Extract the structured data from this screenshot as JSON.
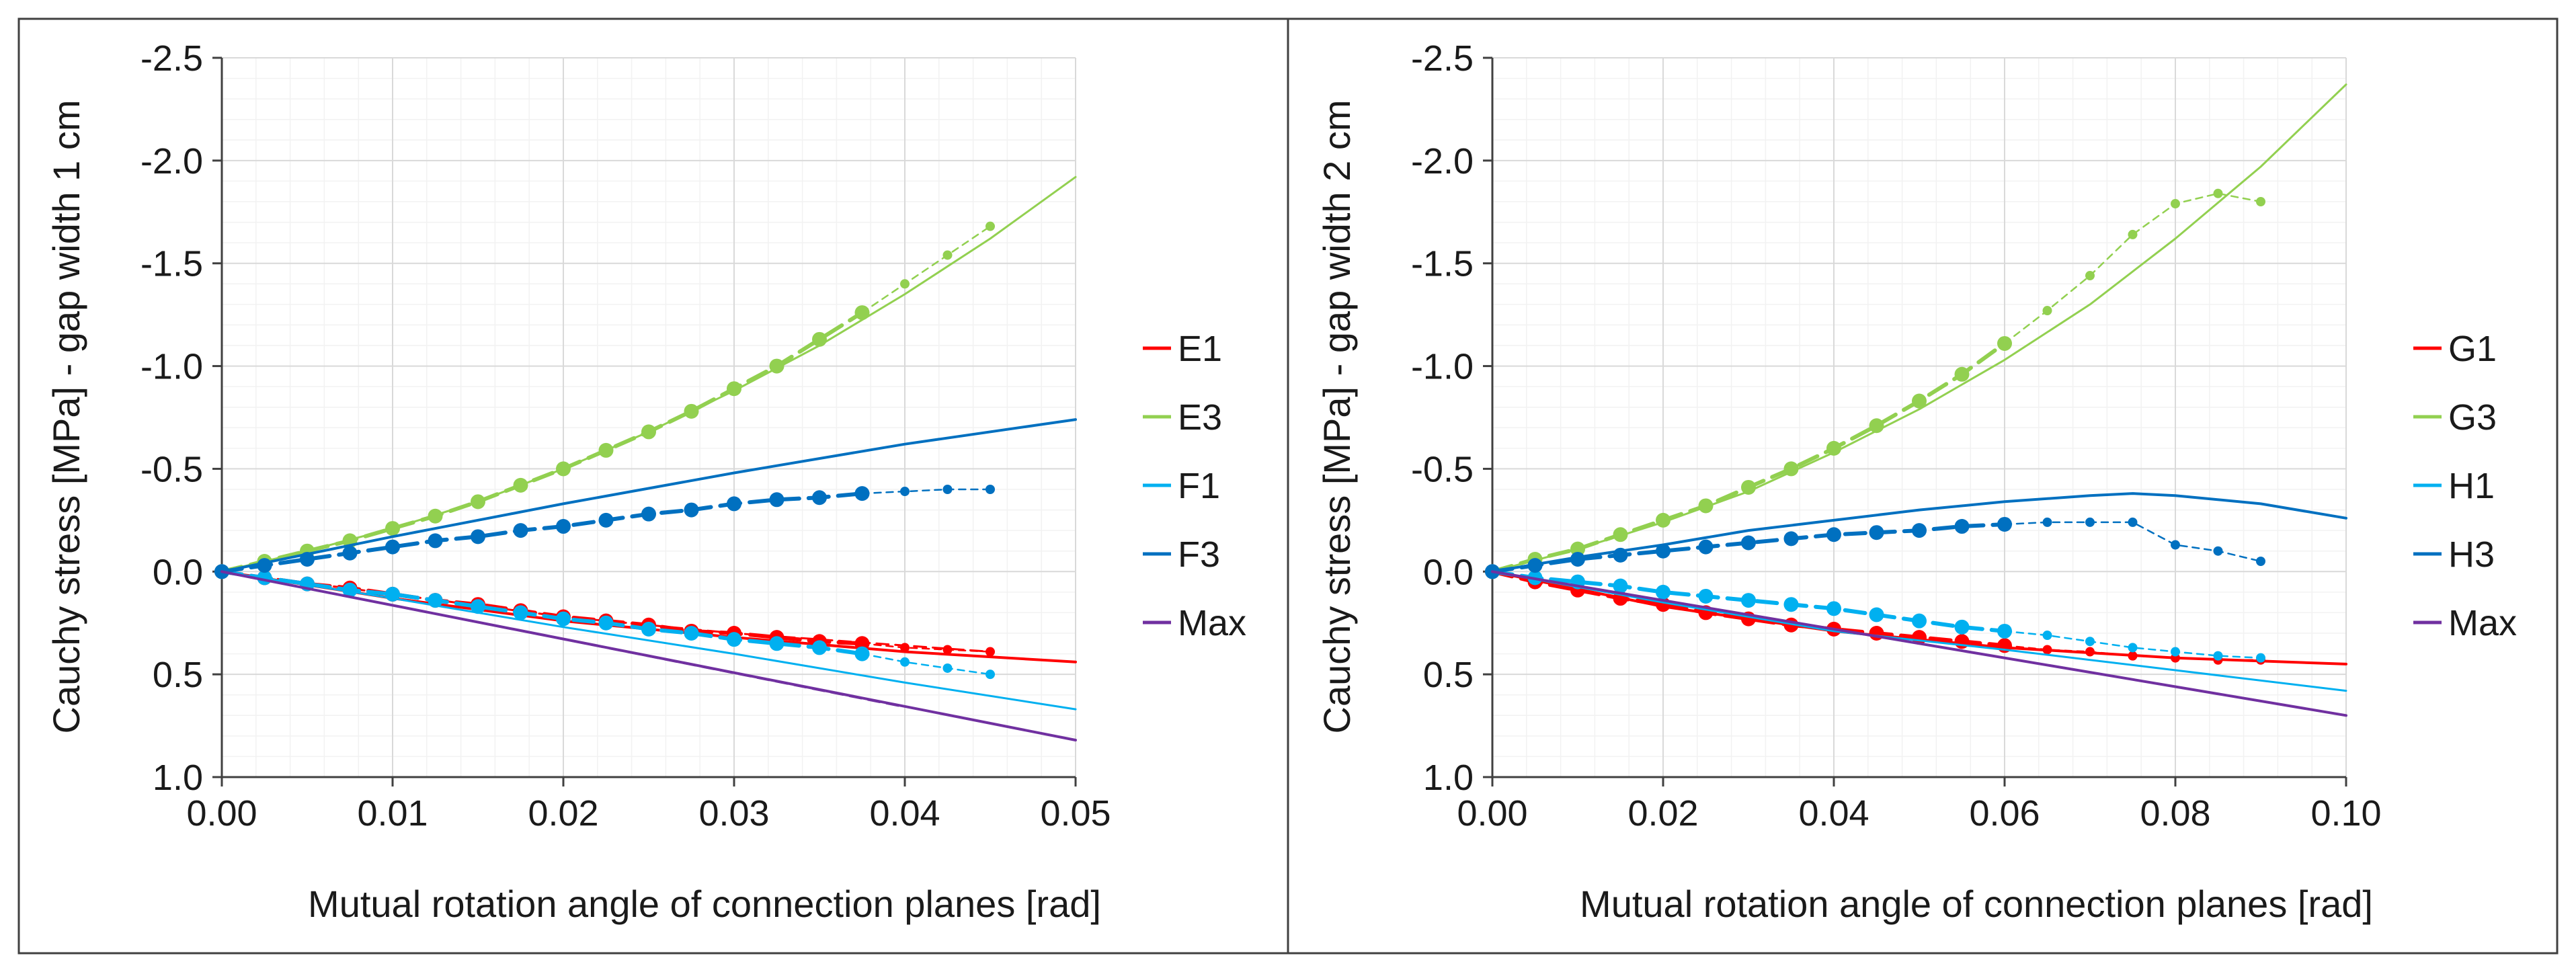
{
  "colors": {
    "red": "#ff0000",
    "green": "#92d050",
    "lightblue": "#00b0f0",
    "blue": "#0070c0",
    "purple": "#7030a0",
    "grid": "#d9d9d9",
    "minor": "#f2f2f2",
    "axis": "#404040"
  },
  "chart_data": [
    {
      "type": "line",
      "name": "left",
      "xlabel": "Mutual rotation angle of connection planes [rad]",
      "ylabel": "Cauchy stress [MPa] - gap width 1 cm",
      "xlim": [
        0,
        0.05
      ],
      "ylim": [
        -2.5,
        1.0
      ],
      "y_inverted": true,
      "xticks": [
        0,
        0.01,
        0.02,
        0.03,
        0.04,
        0.05
      ],
      "xtick_labels": [
        "0.00",
        "0.01",
        "0.02",
        "0.03",
        "0.04",
        "0.05"
      ],
      "yticks": [
        -2.5,
        -2.0,
        -1.5,
        -1.0,
        -0.5,
        0.0,
        0.5,
        1.0
      ],
      "ytick_labels": [
        "-2.5",
        "-2.0",
        "-1.5",
        "-1.0",
        "-0.5",
        "0.0",
        "0.5",
        "1.0"
      ],
      "legend": [
        "E1",
        "E3",
        "F1",
        "F3",
        "Max"
      ],
      "legend_colors": [
        "red",
        "green",
        "lightblue",
        "blue",
        "purple"
      ],
      "series": [
        {
          "name": "E1 model",
          "color": "red",
          "style": "solid",
          "width": 4,
          "x": [
            0,
            0.01,
            0.02,
            0.03,
            0.04,
            0.05
          ],
          "y": [
            0,
            0.13,
            0.24,
            0.32,
            0.39,
            0.44
          ]
        },
        {
          "name": "E1 test (dashed)",
          "color": "red",
          "style": "dash",
          "width": 3,
          "x": [
            0,
            0.01,
            0.02,
            0.03,
            0.035,
            0.04,
            0.045
          ],
          "y": [
            0,
            0.11,
            0.22,
            0.3,
            0.33,
            0.36,
            0.39
          ]
        },
        {
          "name": "E1 test",
          "color": "red",
          "style": "dot-line",
          "width": 6,
          "x": [
            0,
            0.0025,
            0.005,
            0.0075,
            0.01,
            0.0125,
            0.015,
            0.0175,
            0.02,
            0.0225,
            0.025,
            0.0275,
            0.03,
            0.0325,
            0.035,
            0.0375
          ],
          "y": [
            0,
            0.03,
            0.06,
            0.08,
            0.11,
            0.14,
            0.16,
            0.19,
            0.22,
            0.24,
            0.26,
            0.29,
            0.3,
            0.32,
            0.34,
            0.35
          ]
        },
        {
          "name": "E1 test ext",
          "color": "red",
          "style": "small-dot",
          "width": 2.5,
          "x": [
            0.0375,
            0.04,
            0.0425,
            0.045
          ],
          "y": [
            0.35,
            0.37,
            0.38,
            0.39
          ]
        },
        {
          "name": "E3 model",
          "color": "green",
          "style": "solid",
          "width": 3,
          "x": [
            0,
            0.005,
            0.01,
            0.015,
            0.02,
            0.025,
            0.03,
            0.035,
            0.04,
            0.045,
            0.05
          ],
          "y": [
            0,
            -0.1,
            -0.21,
            -0.34,
            -0.5,
            -0.68,
            -0.88,
            -1.1,
            -1.35,
            -1.62,
            -1.92
          ]
        },
        {
          "name": "E3 test",
          "color": "green",
          "style": "dot-line",
          "width": 6,
          "x": [
            0,
            0.0025,
            0.005,
            0.0075,
            0.01,
            0.0125,
            0.015,
            0.0175,
            0.02,
            0.0225,
            0.025,
            0.0275,
            0.03,
            0.0325,
            0.035,
            0.0375
          ],
          "y": [
            0,
            -0.05,
            -0.1,
            -0.15,
            -0.21,
            -0.27,
            -0.34,
            -0.42,
            -0.5,
            -0.59,
            -0.68,
            -0.78,
            -0.89,
            -1.0,
            -1.13,
            -1.26
          ]
        },
        {
          "name": "E3 test ext",
          "color": "green",
          "style": "small-dot",
          "width": 2.5,
          "x": [
            0.0375,
            0.04,
            0.0425,
            0.045
          ],
          "y": [
            -1.26,
            -1.4,
            -1.54,
            -1.68
          ]
        },
        {
          "name": "F1 model",
          "color": "lightblue",
          "style": "solid",
          "width": 3,
          "x": [
            0,
            0.01,
            0.02,
            0.03,
            0.04,
            0.05
          ],
          "y": [
            0,
            0.13,
            0.27,
            0.4,
            0.54,
            0.67
          ]
        },
        {
          "name": "F1 test",
          "color": "lightblue",
          "style": "dot-line",
          "width": 6,
          "x": [
            0,
            0.0025,
            0.005,
            0.0075,
            0.01,
            0.0125,
            0.015,
            0.0175,
            0.02,
            0.0225,
            0.025,
            0.0275,
            0.03,
            0.0325,
            0.035,
            0.0375
          ],
          "y": [
            0,
            0.03,
            0.06,
            0.09,
            0.11,
            0.14,
            0.17,
            0.2,
            0.23,
            0.25,
            0.28,
            0.3,
            0.33,
            0.35,
            0.37,
            0.4
          ]
        },
        {
          "name": "F1 test ext",
          "color": "lightblue",
          "style": "small-dot",
          "width": 2.5,
          "x": [
            0.0375,
            0.04,
            0.0425,
            0.045
          ],
          "y": [
            0.4,
            0.44,
            0.47,
            0.5
          ]
        },
        {
          "name": "F3 model",
          "color": "blue",
          "style": "solid",
          "width": 4,
          "x": [
            0,
            0.01,
            0.02,
            0.03,
            0.04,
            0.05
          ],
          "y": [
            0,
            -0.17,
            -0.33,
            -0.48,
            -0.62,
            -0.74
          ]
        },
        {
          "name": "F3 test",
          "color": "blue",
          "style": "dot-line",
          "width": 6,
          "x": [
            0,
            0.0025,
            0.005,
            0.0075,
            0.01,
            0.0125,
            0.015,
            0.0175,
            0.02,
            0.0225,
            0.025,
            0.0275,
            0.03,
            0.0325,
            0.035,
            0.0375
          ],
          "y": [
            0,
            -0.03,
            -0.06,
            -0.09,
            -0.12,
            -0.15,
            -0.17,
            -0.2,
            -0.22,
            -0.25,
            -0.28,
            -0.3,
            -0.33,
            -0.35,
            -0.36,
            -0.38
          ]
        },
        {
          "name": "F3 test ext",
          "color": "blue",
          "style": "small-dot",
          "width": 2.5,
          "x": [
            0.0375,
            0.04,
            0.0425,
            0.045
          ],
          "y": [
            -0.38,
            -0.39,
            -0.4,
            -0.4
          ]
        },
        {
          "name": "Max",
          "color": "purple",
          "style": "solid",
          "width": 4,
          "x": [
            0,
            0.05
          ],
          "y": [
            0,
            0.82
          ]
        },
        {
          "name": "Max dashed",
          "color": "purple",
          "style": "dash",
          "width": 2.5,
          "x": [
            0,
            0.04
          ],
          "y": [
            0,
            0.66
          ]
        }
      ]
    },
    {
      "type": "line",
      "name": "right",
      "xlabel": "Mutual rotation angle of connection planes [rad]",
      "ylabel": "Cauchy stress [MPa] - gap width 2 cm",
      "xlim": [
        0,
        0.1
      ],
      "ylim": [
        -2.5,
        1.0
      ],
      "y_inverted": true,
      "xticks": [
        0,
        0.02,
        0.04,
        0.06,
        0.08,
        0.1
      ],
      "xtick_labels": [
        "0.00",
        "0.02",
        "0.04",
        "0.06",
        "0.08",
        "0.10"
      ],
      "yticks": [
        -2.5,
        -2.0,
        -1.5,
        -1.0,
        -0.5,
        0.0,
        0.5,
        1.0
      ],
      "ytick_labels": [
        "-2.5",
        "-2.0",
        "-1.5",
        "-1.0",
        "-0.5",
        "0.0",
        "0.5",
        "1.0"
      ],
      "legend": [
        "G1",
        "G3",
        "H1",
        "H3",
        "Max"
      ],
      "legend_colors": [
        "red",
        "green",
        "lightblue",
        "blue",
        "purple"
      ],
      "series": [
        {
          "name": "G1 model",
          "color": "red",
          "style": "solid",
          "width": 4,
          "x": [
            0,
            0.02,
            0.04,
            0.06,
            0.08,
            0.1
          ],
          "y": [
            0,
            0.17,
            0.29,
            0.37,
            0.42,
            0.45
          ]
        },
        {
          "name": "G1 test",
          "color": "red",
          "style": "dot-line",
          "width": 6,
          "x": [
            0,
            0.005,
            0.01,
            0.015,
            0.02,
            0.025,
            0.03,
            0.035,
            0.04,
            0.045,
            0.05,
            0.055,
            0.06
          ],
          "y": [
            0,
            0.05,
            0.09,
            0.13,
            0.16,
            0.2,
            0.23,
            0.26,
            0.28,
            0.3,
            0.32,
            0.34,
            0.36
          ]
        },
        {
          "name": "G1 test ext",
          "color": "red",
          "style": "small-dot",
          "width": 2.5,
          "x": [
            0.06,
            0.065,
            0.07,
            0.075,
            0.08,
            0.085,
            0.09
          ],
          "y": [
            0.36,
            0.38,
            0.39,
            0.41,
            0.42,
            0.43,
            0.43
          ]
        },
        {
          "name": "G3 model",
          "color": "green",
          "style": "solid",
          "width": 3,
          "x": [
            0,
            0.01,
            0.02,
            0.03,
            0.04,
            0.05,
            0.06,
            0.07,
            0.08,
            0.09,
            0.1
          ],
          "y": [
            0,
            -0.11,
            -0.24,
            -0.39,
            -0.58,
            -0.79,
            -1.03,
            -1.3,
            -1.62,
            -1.97,
            -2.37
          ]
        },
        {
          "name": "G3 test",
          "color": "green",
          "style": "dot-line",
          "width": 6,
          "x": [
            0,
            0.005,
            0.01,
            0.015,
            0.02,
            0.025,
            0.03,
            0.035,
            0.04,
            0.045,
            0.05,
            0.055,
            0.06
          ],
          "y": [
            0,
            -0.06,
            -0.11,
            -0.18,
            -0.25,
            -0.32,
            -0.41,
            -0.5,
            -0.6,
            -0.71,
            -0.83,
            -0.96,
            -1.11
          ]
        },
        {
          "name": "G3 test ext",
          "color": "green",
          "style": "small-dot",
          "width": 2.5,
          "x": [
            0.06,
            0.065,
            0.07,
            0.075,
            0.08,
            0.085,
            0.09
          ],
          "y": [
            -1.11,
            -1.27,
            -1.44,
            -1.64,
            -1.79,
            -1.84,
            -1.8
          ]
        },
        {
          "name": "H1 model",
          "color": "lightblue",
          "style": "solid",
          "width": 3,
          "x": [
            0,
            0.02,
            0.04,
            0.06,
            0.08,
            0.1
          ],
          "y": [
            0,
            0.15,
            0.29,
            0.38,
            0.48,
            0.58
          ]
        },
        {
          "name": "H1 test",
          "color": "lightblue",
          "style": "dot-line",
          "width": 6,
          "x": [
            0,
            0.005,
            0.01,
            0.015,
            0.02,
            0.025,
            0.03,
            0.035,
            0.04,
            0.045,
            0.05,
            0.055,
            0.06
          ],
          "y": [
            0,
            0.03,
            0.05,
            0.07,
            0.1,
            0.12,
            0.14,
            0.16,
            0.18,
            0.21,
            0.24,
            0.27,
            0.29
          ]
        },
        {
          "name": "H1 test ext",
          "color": "lightblue",
          "style": "small-dot",
          "width": 2.5,
          "x": [
            0.06,
            0.065,
            0.07,
            0.075,
            0.08,
            0.085,
            0.09
          ],
          "y": [
            0.29,
            0.31,
            0.34,
            0.37,
            0.39,
            0.41,
            0.42
          ]
        },
        {
          "name": "H3 model",
          "color": "blue",
          "style": "solid",
          "width": 4,
          "x": [
            0,
            0.01,
            0.02,
            0.03,
            0.04,
            0.05,
            0.06,
            0.07,
            0.075,
            0.08,
            0.09,
            0.1
          ],
          "y": [
            0,
            -0.07,
            -0.13,
            -0.2,
            -0.25,
            -0.3,
            -0.34,
            -0.37,
            -0.38,
            -0.37,
            -0.33,
            -0.26
          ]
        },
        {
          "name": "H3 test",
          "color": "blue",
          "style": "dot-line",
          "width": 6,
          "x": [
            0,
            0.005,
            0.01,
            0.015,
            0.02,
            0.025,
            0.03,
            0.035,
            0.04,
            0.045,
            0.05,
            0.055,
            0.06
          ],
          "y": [
            0,
            -0.03,
            -0.06,
            -0.08,
            -0.1,
            -0.12,
            -0.14,
            -0.16,
            -0.18,
            -0.19,
            -0.2,
            -0.22,
            -0.23
          ]
        },
        {
          "name": "H3 test ext",
          "color": "blue",
          "style": "small-dot",
          "width": 2.5,
          "x": [
            0.06,
            0.065,
            0.07,
            0.075,
            0.08,
            0.085,
            0.09
          ],
          "y": [
            -0.23,
            -0.24,
            -0.24,
            -0.24,
            -0.13,
            -0.1,
            -0.05
          ]
        },
        {
          "name": "Max",
          "color": "purple",
          "style": "solid",
          "width": 4,
          "x": [
            0,
            0.1
          ],
          "y": [
            0,
            0.7
          ]
        },
        {
          "name": "Max dashed",
          "color": "purple",
          "style": "dash",
          "width": 2.5,
          "x": [
            0,
            0.09
          ],
          "y": [
            0,
            0.63
          ]
        }
      ]
    }
  ]
}
